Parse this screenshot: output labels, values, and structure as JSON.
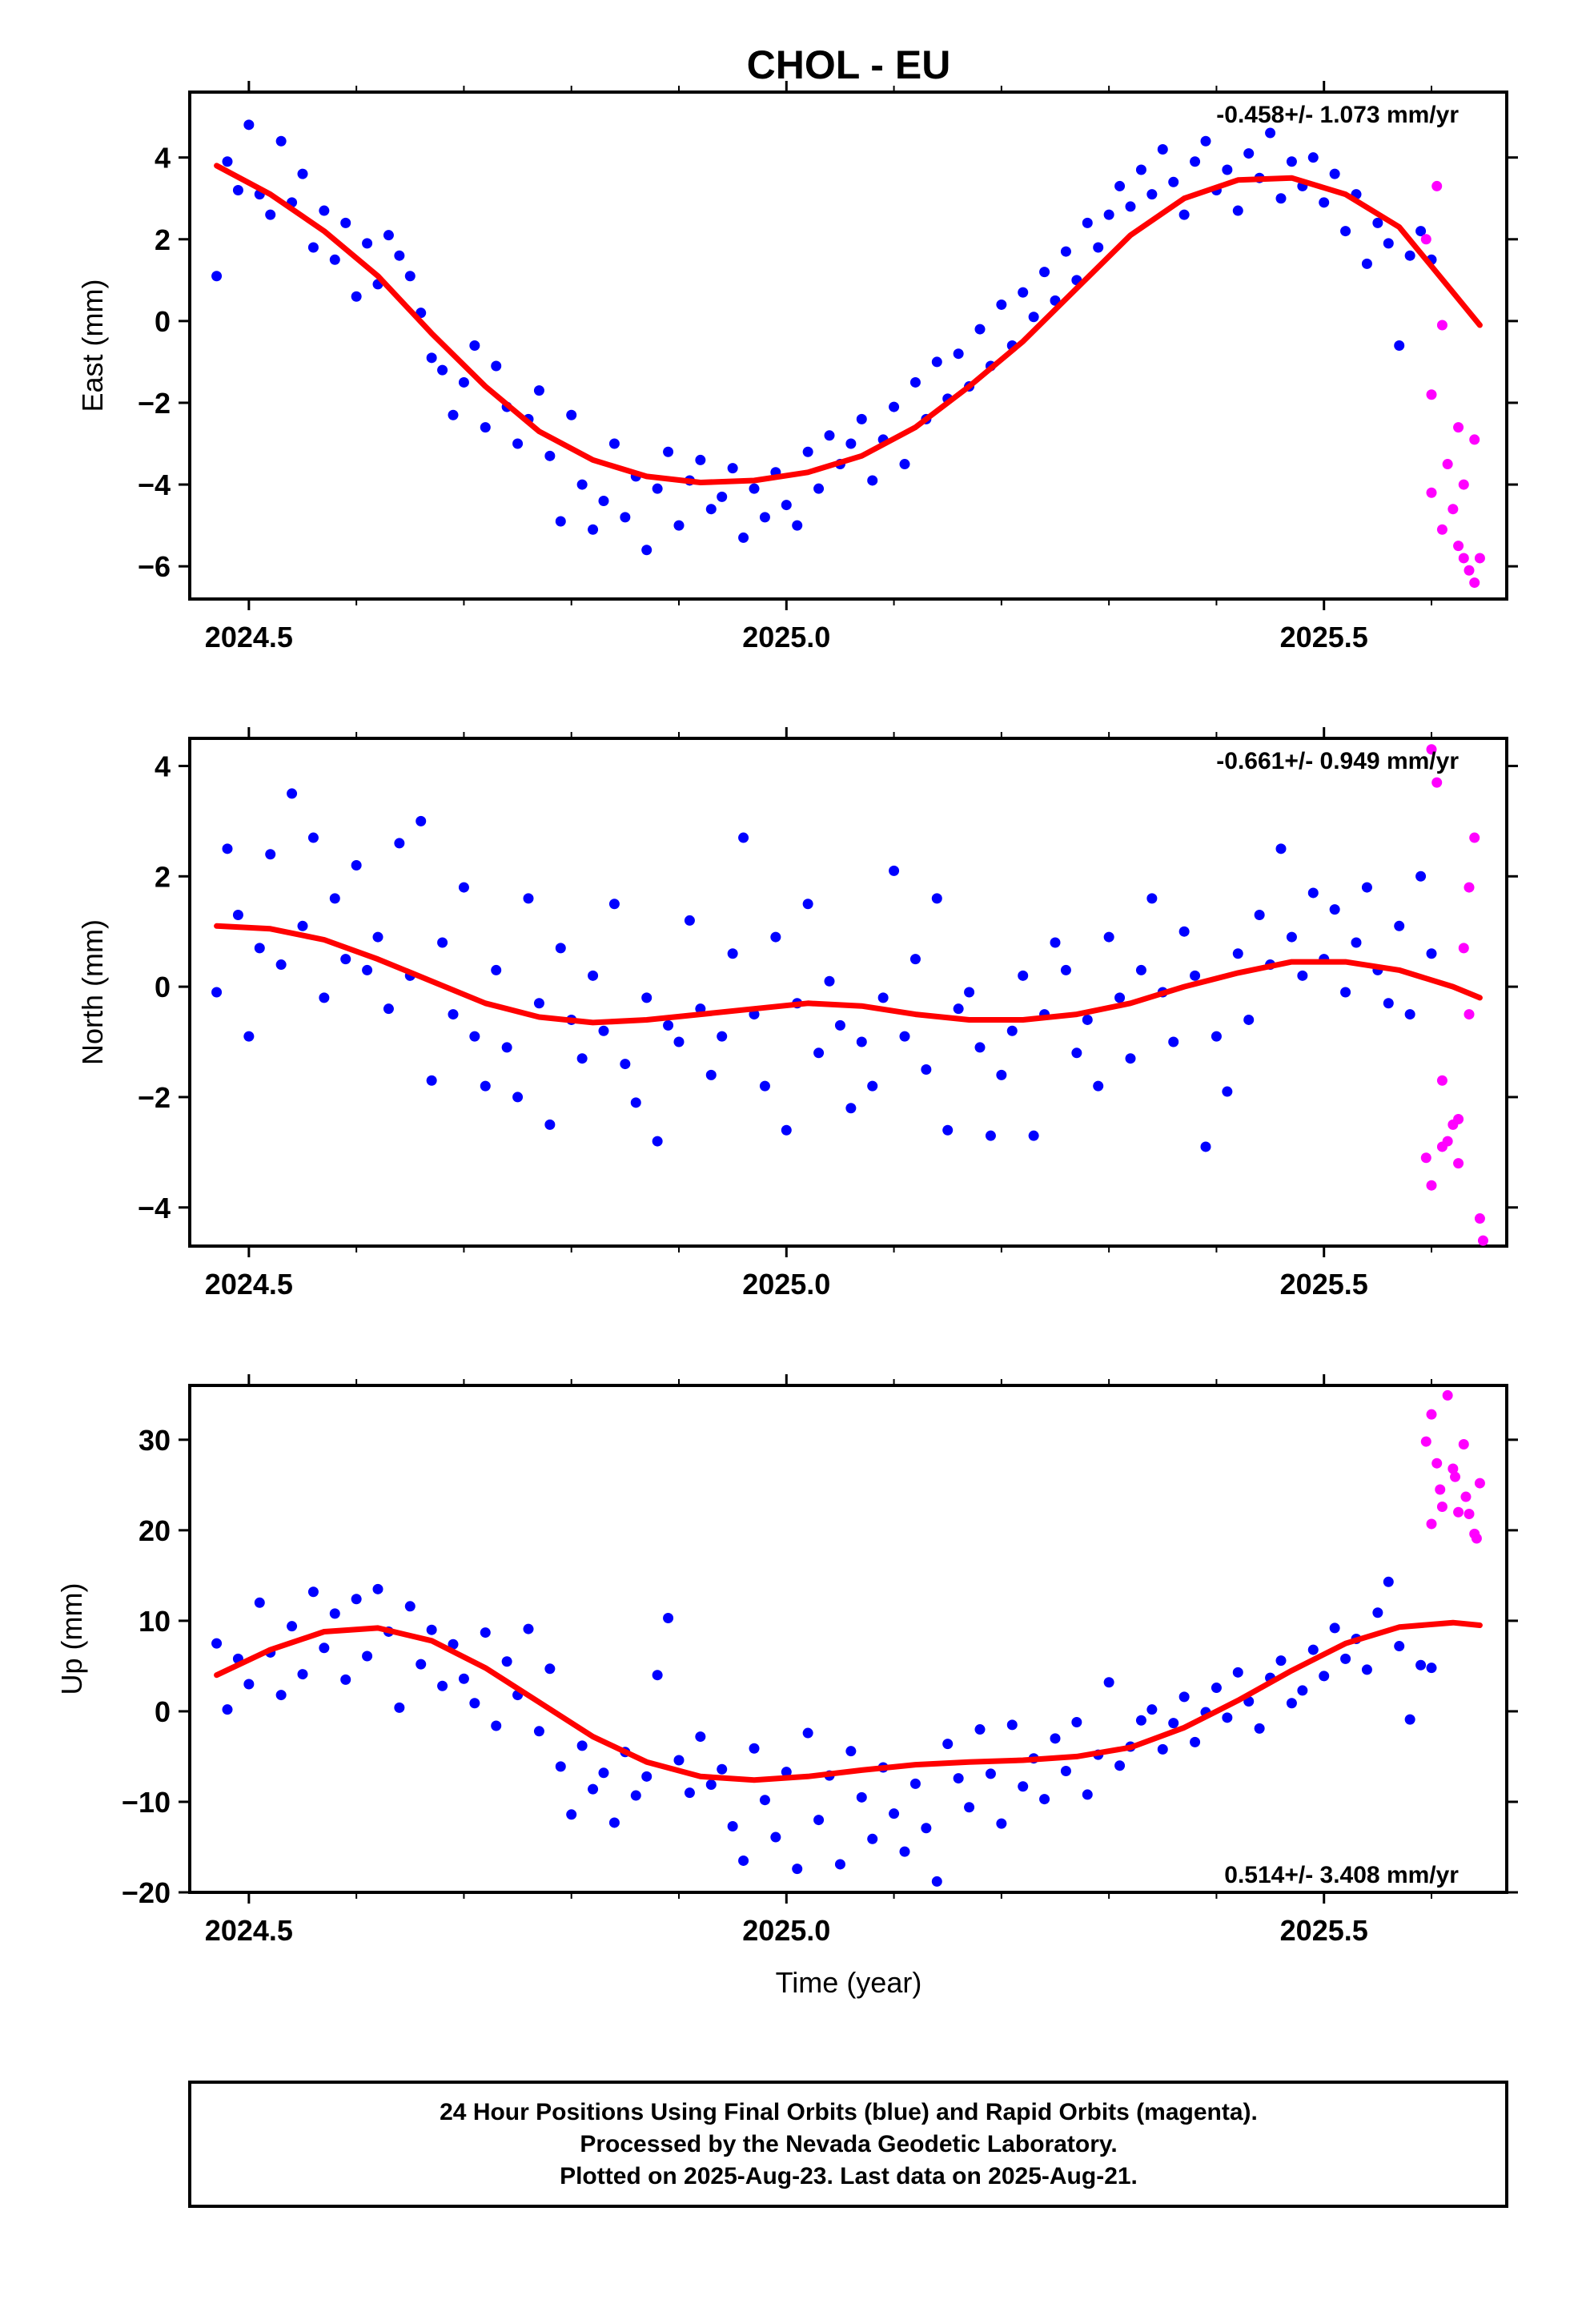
{
  "title": "CHOL - EU",
  "x_axis_label": "Time (year)",
  "footer": {
    "line1": "24 Hour Positions Using Final Orbits (blue) and Rapid Orbits (magenta).",
    "line2": "Processed by the Nevada Geodetic Laboratory.",
    "line3": "Plotted on 2025-Aug-23. Last data on 2025-Aug-21."
  },
  "colors": {
    "final": "#0000ff",
    "rapid": "#ff00ff",
    "fit": "#ff0000",
    "frame": "#000000"
  },
  "chart_data": [
    {
      "type": "scatter",
      "ylabel": "East (mm)",
      "rate_text": "-0.458+/- 1.073 mm/yr",
      "rate_position": "top-right",
      "xlim": [
        2024.445,
        2025.67
      ],
      "ylim": [
        -6.8,
        5.6
      ],
      "xticks": [
        2024.5,
        2025.0,
        2025.5
      ],
      "xtick_labels": [
        "2024.5",
        "2025.0",
        "2025.5"
      ],
      "yticks": [
        4,
        2,
        0,
        -2,
        -4,
        -6
      ],
      "ytick_labels": [
        "4",
        "2",
        "0",
        "−2",
        "−4",
        "−6"
      ],
      "fit_curve": {
        "x": [
          2024.47,
          2024.52,
          2024.57,
          2024.62,
          2024.67,
          2024.72,
          2024.77,
          2024.82,
          2024.87,
          2024.92,
          2024.97,
          2025.02,
          2025.07,
          2025.12,
          2025.17,
          2025.22,
          2025.27,
          2025.32,
          2025.37,
          2025.42,
          2025.47,
          2025.52,
          2025.57,
          2025.62,
          2025.645
        ],
        "y": [
          3.8,
          3.1,
          2.2,
          1.1,
          -0.3,
          -1.6,
          -2.7,
          -3.4,
          -3.8,
          -3.95,
          -3.9,
          -3.7,
          -3.3,
          -2.6,
          -1.6,
          -0.5,
          0.8,
          2.1,
          3.0,
          3.45,
          3.5,
          3.1,
          2.3,
          0.7,
          -0.1
        ]
      },
      "final_points": {
        "x": [
          2024.47,
          2024.48,
          2024.49,
          2024.5,
          2024.51,
          2024.52,
          2024.53,
          2024.54,
          2024.55,
          2024.56,
          2024.57,
          2024.58,
          2024.59,
          2024.6,
          2024.61,
          2024.62,
          2024.63,
          2024.64,
          2024.65,
          2024.66,
          2024.67,
          2024.68,
          2024.69,
          2024.7,
          2024.71,
          2024.72,
          2024.73,
          2024.74,
          2024.75,
          2024.76,
          2024.77,
          2024.78,
          2024.79,
          2024.8,
          2024.81,
          2024.82,
          2024.83,
          2024.84,
          2024.85,
          2024.86,
          2024.87,
          2024.88,
          2024.89,
          2024.9,
          2024.91,
          2024.92,
          2024.93,
          2024.94,
          2024.95,
          2024.96,
          2024.97,
          2024.98,
          2024.99,
          2025.0,
          2025.01,
          2025.02,
          2025.03,
          2025.04,
          2025.05,
          2025.06,
          2025.07,
          2025.08,
          2025.09,
          2025.1,
          2025.11,
          2025.12,
          2025.13,
          2025.14,
          2025.15,
          2025.16,
          2025.17,
          2025.18,
          2025.19,
          2025.2,
          2025.21,
          2025.22,
          2025.23,
          2025.24,
          2025.25,
          2025.26,
          2025.27,
          2025.28,
          2025.29,
          2025.3,
          2025.31,
          2025.32,
          2025.33,
          2025.34,
          2025.35,
          2025.36,
          2025.37,
          2025.38,
          2025.39,
          2025.4,
          2025.41,
          2025.42,
          2025.43,
          2025.44,
          2025.45,
          2025.46,
          2025.47,
          2025.48,
          2025.49,
          2025.5,
          2025.51,
          2025.52,
          2025.53,
          2025.54,
          2025.55,
          2025.56,
          2025.57,
          2025.58,
          2025.59,
          2025.6
        ],
        "y": [
          1.1,
          3.9,
          3.2,
          4.8,
          3.1,
          2.6,
          4.4,
          2.9,
          3.6,
          1.8,
          2.7,
          1.5,
          2.4,
          0.6,
          1.9,
          0.9,
          2.1,
          1.6,
          1.1,
          0.2,
          -0.9,
          -1.2,
          -2.3,
          -1.5,
          -0.6,
          -2.6,
          -1.1,
          -2.1,
          -3.0,
          -2.4,
          -1.7,
          -3.3,
          -4.9,
          -2.3,
          -4.0,
          -5.1,
          -4.4,
          -3.0,
          -4.8,
          -3.8,
          -5.6,
          -4.1,
          -3.2,
          -5.0,
          -3.9,
          -3.4,
          -4.6,
          -4.3,
          -3.6,
          -5.3,
          -4.1,
          -4.8,
          -3.7,
          -4.5,
          -5.0,
          -3.2,
          -4.1,
          -2.8,
          -3.5,
          -3.0,
          -2.4,
          -3.9,
          -2.9,
          -2.1,
          -3.5,
          -1.5,
          -2.4,
          -1.0,
          -1.9,
          -0.8,
          -1.6,
          -0.2,
          -1.1,
          0.4,
          -0.6,
          0.7,
          0.1,
          1.2,
          0.5,
          1.7,
          1.0,
          2.4,
          1.8,
          2.6,
          3.3,
          2.8,
          3.7,
          3.1,
          4.2,
          3.4,
          2.6,
          3.9,
          4.4,
          3.2,
          3.7,
          2.7,
          4.1,
          3.5,
          4.6,
          3.0,
          3.9,
          3.3,
          4.0,
          2.9,
          3.6,
          2.2,
          3.1,
          1.4,
          2.4,
          1.9,
          -0.6,
          1.6,
          2.2,
          1.5
        ]
      },
      "rapid_points": {
        "x": [
          2025.595,
          2025.6,
          2025.605,
          2025.61,
          2025.615,
          2025.62,
          2025.625,
          2025.63,
          2025.635,
          2025.64,
          2025.645,
          2025.6,
          2025.61,
          2025.625,
          2025.63,
          2025.64
        ],
        "y": [
          2.0,
          -1.8,
          3.3,
          -5.1,
          -3.5,
          -4.6,
          -2.6,
          -5.8,
          -6.1,
          -6.4,
          -5.8,
          -4.2,
          -0.1,
          -5.5,
          -4.0,
          -2.9
        ]
      }
    },
    {
      "type": "scatter",
      "ylabel": "North (mm)",
      "rate_text": "-0.661+/- 0.949 mm/yr",
      "rate_position": "top-right",
      "xlim": [
        2024.445,
        2025.67
      ],
      "ylim": [
        -4.7,
        4.5
      ],
      "xticks": [
        2024.5,
        2025.0,
        2025.5
      ],
      "xtick_labels": [
        "2024.5",
        "2025.0",
        "2025.5"
      ],
      "yticks": [
        4,
        2,
        0,
        -2,
        -4
      ],
      "ytick_labels": [
        "4",
        "2",
        "0",
        "−2",
        "−4"
      ],
      "fit_curve": {
        "x": [
          2024.47,
          2024.52,
          2024.57,
          2024.62,
          2024.67,
          2024.72,
          2024.77,
          2024.82,
          2024.87,
          2024.92,
          2024.97,
          2025.02,
          2025.07,
          2025.12,
          2025.17,
          2025.22,
          2025.27,
          2025.32,
          2025.37,
          2025.42,
          2025.47,
          2025.52,
          2025.57,
          2025.62,
          2025.645
        ],
        "y": [
          1.1,
          1.05,
          0.85,
          0.5,
          0.1,
          -0.3,
          -0.55,
          -0.65,
          -0.6,
          -0.5,
          -0.4,
          -0.3,
          -0.35,
          -0.5,
          -0.6,
          -0.6,
          -0.5,
          -0.3,
          0.0,
          0.25,
          0.45,
          0.45,
          0.3,
          0.0,
          -0.2
        ]
      },
      "final_points": {
        "x": [
          2024.47,
          2024.48,
          2024.49,
          2024.5,
          2024.51,
          2024.52,
          2024.53,
          2024.54,
          2024.55,
          2024.56,
          2024.57,
          2024.58,
          2024.59,
          2024.6,
          2024.61,
          2024.62,
          2024.63,
          2024.64,
          2024.65,
          2024.66,
          2024.67,
          2024.68,
          2024.69,
          2024.7,
          2024.71,
          2024.72,
          2024.73,
          2024.74,
          2024.75,
          2024.76,
          2024.77,
          2024.78,
          2024.79,
          2024.8,
          2024.81,
          2024.82,
          2024.83,
          2024.84,
          2024.85,
          2024.86,
          2024.87,
          2024.88,
          2024.89,
          2024.9,
          2024.91,
          2024.92,
          2024.93,
          2024.94,
          2024.95,
          2024.96,
          2024.97,
          2024.98,
          2024.99,
          2025.0,
          2025.01,
          2025.02,
          2025.03,
          2025.04,
          2025.05,
          2025.06,
          2025.07,
          2025.08,
          2025.09,
          2025.1,
          2025.11,
          2025.12,
          2025.13,
          2025.14,
          2025.15,
          2025.16,
          2025.17,
          2025.18,
          2025.19,
          2025.2,
          2025.21,
          2025.22,
          2025.23,
          2025.24,
          2025.25,
          2025.26,
          2025.27,
          2025.28,
          2025.29,
          2025.3,
          2025.31,
          2025.32,
          2025.33,
          2025.34,
          2025.35,
          2025.36,
          2025.37,
          2025.38,
          2025.39,
          2025.4,
          2025.41,
          2025.42,
          2025.43,
          2025.44,
          2025.45,
          2025.46,
          2025.47,
          2025.48,
          2025.49,
          2025.5,
          2025.51,
          2025.52,
          2025.53,
          2025.54,
          2025.55,
          2025.56,
          2025.57,
          2025.58,
          2025.59,
          2025.6
        ],
        "y": [
          -0.1,
          2.5,
          1.3,
          -0.9,
          0.7,
          2.4,
          0.4,
          3.5,
          1.1,
          2.7,
          -0.2,
          1.6,
          0.5,
          2.2,
          0.3,
          0.9,
          -0.4,
          2.6,
          0.2,
          3.0,
          -1.7,
          0.8,
          -0.5,
          1.8,
          -0.9,
          -1.8,
          0.3,
          -1.1,
          -2.0,
          1.6,
          -0.3,
          -2.5,
          0.7,
          -0.6,
          -1.3,
          0.2,
          -0.8,
          1.5,
          -1.4,
          -2.1,
          -0.2,
          -2.8,
          -0.7,
          -1.0,
          1.2,
          -0.4,
          -1.6,
          -0.9,
          0.6,
          2.7,
          -0.5,
          -1.8,
          0.9,
          -2.6,
          -0.3,
          1.5,
          -1.2,
          0.1,
          -0.7,
          -2.2,
          -1.0,
          -1.8,
          -0.2,
          2.1,
          -0.9,
          0.5,
          -1.5,
          1.6,
          -2.6,
          -0.4,
          -0.1,
          -1.1,
          -2.7,
          -1.6,
          -0.8,
          0.2,
          -2.7,
          -0.5,
          0.8,
          0.3,
          -1.2,
          -0.6,
          -1.8,
          0.9,
          -0.2,
          -1.3,
          0.3,
          1.6,
          -0.1,
          -1.0,
          1.0,
          0.2,
          -2.9,
          -0.9,
          -1.9,
          0.6,
          -0.6,
          1.3,
          0.4,
          2.5,
          0.9,
          0.2,
          1.7,
          0.5,
          1.4,
          -0.1,
          0.8,
          1.8,
          0.3,
          -0.3,
          1.1,
          -0.5,
          2.0,
          0.6
        ]
      },
      "rapid_points": {
        "x": [
          2025.595,
          2025.6,
          2025.605,
          2025.61,
          2025.615,
          2025.62,
          2025.625,
          2025.63,
          2025.635,
          2025.64,
          2025.645,
          2025.6,
          2025.61,
          2025.625,
          2025.635,
          2025.648
        ],
        "y": [
          -3.1,
          4.3,
          3.7,
          -1.7,
          -2.8,
          -2.5,
          -3.2,
          0.7,
          1.8,
          2.7,
          -4.2,
          -3.6,
          -2.9,
          -2.4,
          -0.5,
          -4.6
        ]
      }
    },
    {
      "type": "scatter",
      "ylabel": "Up (mm)",
      "xlabel": "Time (year)",
      "rate_text": "0.514+/- 3.408 mm/yr",
      "rate_position": "bottom-right",
      "xlim": [
        2024.445,
        2025.67
      ],
      "ylim": [
        -20,
        36
      ],
      "xticks": [
        2024.5,
        2025.0,
        2025.5
      ],
      "xtick_labels": [
        "2024.5",
        "2025.0",
        "2025.5"
      ],
      "yticks": [
        30,
        20,
        10,
        0,
        -10,
        -20
      ],
      "ytick_labels": [
        "30",
        "20",
        "10",
        "0",
        "−10",
        "−20"
      ],
      "fit_curve": {
        "x": [
          2024.47,
          2024.52,
          2024.57,
          2024.62,
          2024.67,
          2024.72,
          2024.77,
          2024.82,
          2024.87,
          2024.92,
          2024.97,
          2025.02,
          2025.07,
          2025.12,
          2025.17,
          2025.22,
          2025.27,
          2025.32,
          2025.37,
          2025.42,
          2025.47,
          2025.52,
          2025.57,
          2025.62,
          2025.645
        ],
        "y": [
          4.0,
          6.8,
          8.8,
          9.2,
          7.8,
          4.8,
          1.0,
          -2.8,
          -5.6,
          -7.2,
          -7.6,
          -7.2,
          -6.5,
          -5.9,
          -5.6,
          -5.4,
          -5.0,
          -4.0,
          -1.8,
          1.2,
          4.5,
          7.5,
          9.3,
          9.8,
          9.5
        ]
      },
      "final_points": {
        "x": [
          2024.47,
          2024.48,
          2024.49,
          2024.5,
          2024.51,
          2024.52,
          2024.53,
          2024.54,
          2024.55,
          2024.56,
          2024.57,
          2024.58,
          2024.59,
          2024.6,
          2024.61,
          2024.62,
          2024.63,
          2024.64,
          2024.65,
          2024.66,
          2024.67,
          2024.68,
          2024.69,
          2024.7,
          2024.71,
          2024.72,
          2024.73,
          2024.74,
          2024.75,
          2024.76,
          2024.77,
          2024.78,
          2024.79,
          2024.8,
          2024.81,
          2024.82,
          2024.83,
          2024.84,
          2024.85,
          2024.86,
          2024.87,
          2024.88,
          2024.89,
          2024.9,
          2024.91,
          2024.92,
          2024.93,
          2024.94,
          2024.95,
          2024.96,
          2024.97,
          2024.98,
          2024.99,
          2025.0,
          2025.01,
          2025.02,
          2025.03,
          2025.04,
          2025.05,
          2025.06,
          2025.07,
          2025.08,
          2025.09,
          2025.1,
          2025.11,
          2025.12,
          2025.13,
          2025.14,
          2025.15,
          2025.16,
          2025.17,
          2025.18,
          2025.19,
          2025.2,
          2025.21,
          2025.22,
          2025.23,
          2025.24,
          2025.25,
          2025.26,
          2025.27,
          2025.28,
          2025.29,
          2025.3,
          2025.31,
          2025.32,
          2025.33,
          2025.34,
          2025.35,
          2025.36,
          2025.37,
          2025.38,
          2025.39,
          2025.4,
          2025.41,
          2025.42,
          2025.43,
          2025.44,
          2025.45,
          2025.46,
          2025.47,
          2025.48,
          2025.49,
          2025.5,
          2025.51,
          2025.52,
          2025.53,
          2025.54,
          2025.55,
          2025.56,
          2025.57,
          2025.58,
          2025.59,
          2025.6
        ],
        "y": [
          7.5,
          0.2,
          5.8,
          3.0,
          12.0,
          6.5,
          1.8,
          9.4,
          4.1,
          13.2,
          7.0,
          10.8,
          3.5,
          12.4,
          6.1,
          13.5,
          8.8,
          0.4,
          11.6,
          5.2,
          9.0,
          2.8,
          7.4,
          3.6,
          0.9,
          8.7,
          -1.6,
          5.5,
          1.8,
          9.1,
          -2.2,
          4.7,
          -6.1,
          -11.4,
          -3.8,
          -8.6,
          -6.8,
          -12.3,
          -4.5,
          -9.3,
          -7.2,
          4.0,
          10.3,
          -5.4,
          -9.0,
          -2.8,
          -8.1,
          -6.4,
          -12.7,
          -16.5,
          -4.1,
          -9.8,
          -13.9,
          -6.7,
          -17.4,
          -2.4,
          -12.0,
          -7.1,
          -16.9,
          -4.4,
          -9.5,
          -14.1,
          -6.2,
          -11.3,
          -15.5,
          -8.0,
          -12.9,
          -18.8,
          -3.6,
          -7.4,
          -10.6,
          -2.0,
          -6.9,
          -12.4,
          -1.5,
          -8.3,
          -5.2,
          -9.7,
          -3.0,
          -6.6,
          -1.2,
          -9.2,
          -4.8,
          3.2,
          -6.0,
          -3.9,
          -1.0,
          0.2,
          -4.2,
          -1.3,
          1.6,
          -3.4,
          -0.1,
          2.6,
          -0.7,
          4.3,
          1.1,
          -1.9,
          3.7,
          5.6,
          0.9,
          2.3,
          6.8,
          3.9,
          9.2,
          5.8,
          8.0,
          4.6,
          10.9,
          14.3,
          7.2,
          -0.9,
          5.1,
          4.8
        ]
      },
      "rapid_points": {
        "x": [
          2025.595,
          2025.6,
          2025.605,
          2025.61,
          2025.615,
          2025.62,
          2025.625,
          2025.63,
          2025.635,
          2025.64,
          2025.645,
          2025.6,
          2025.608,
          2025.622,
          2025.632,
          2025.642
        ],
        "y": [
          29.8,
          20.7,
          27.4,
          22.6,
          34.9,
          26.8,
          22.0,
          29.5,
          21.8,
          19.6,
          25.2,
          32.8,
          24.5,
          25.9,
          23.7,
          19.1
        ]
      }
    }
  ]
}
